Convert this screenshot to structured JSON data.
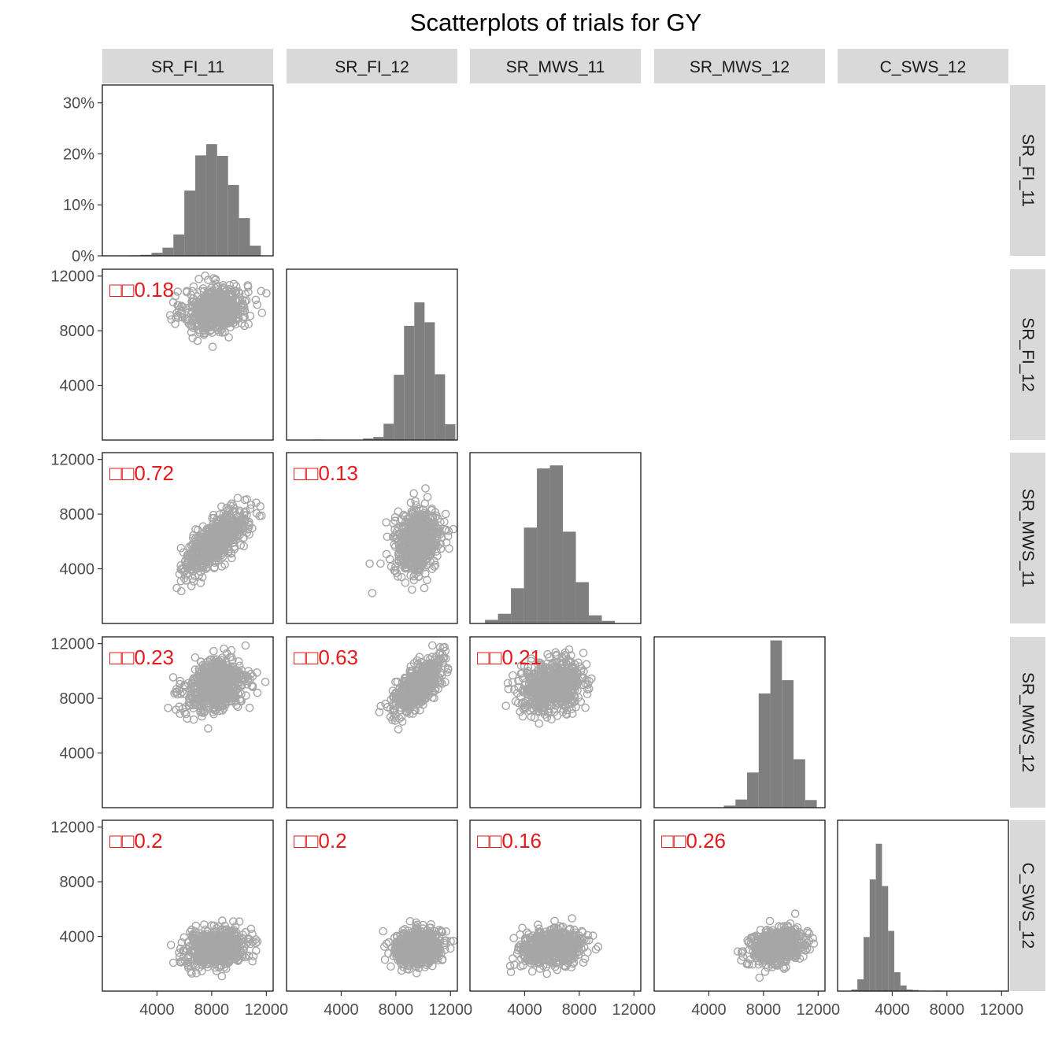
{
  "chart_data": {
    "type": "scatter",
    "title": "Scatterplots of trials for GY",
    "trials": [
      "SR_FI_11",
      "SR_FI_12",
      "SR_MWS_11",
      "SR_MWS_12",
      "C_SWS_12"
    ],
    "axis_range": [
      0,
      12500
    ],
    "axis_ticks": [
      4000,
      8000,
      12000
    ],
    "axis_tick_labels": [
      "4000",
      "8000",
      "12000"
    ],
    "hist_y_ticks": [
      0,
      10,
      20,
      30
    ],
    "hist_y_tick_labels": [
      "0%",
      "10%",
      "20%",
      "30%"
    ],
    "hist_y_max": 33.5,
    "colors": {
      "points": "#a6a6a6",
      "histogram": "#7f7f7f",
      "strip": "#d9d9d9",
      "correlation_text": "#e41a1c",
      "panel_border": "#1a1a1a",
      "axis_text": "#4d4d4d"
    },
    "point_counts": 600,
    "trial_stats": [
      {
        "mean": 8300,
        "sd": 1150
      },
      {
        "mean": 9600,
        "sd": 850
      },
      {
        "mean": 6000,
        "sd": 1150
      },
      {
        "mean": 8900,
        "sd": 950
      },
      {
        "mean": 3200,
        "sd": 650
      }
    ],
    "histograms": [
      {
        "bin_width": 800,
        "bins": [
          {
            "start": 2000,
            "pct": 0.1
          },
          {
            "start": 2800,
            "pct": 0.2
          },
          {
            "start": 3600,
            "pct": 0.6
          },
          {
            "start": 4400,
            "pct": 1.6
          },
          {
            "start": 5200,
            "pct": 4.2
          },
          {
            "start": 6000,
            "pct": 12.8
          },
          {
            "start": 6800,
            "pct": 19.7
          },
          {
            "start": 7600,
            "pct": 21.9
          },
          {
            "start": 8400,
            "pct": 19.6
          },
          {
            "start": 9200,
            "pct": 13.9
          },
          {
            "start": 10000,
            "pct": 7.4
          },
          {
            "start": 10800,
            "pct": 2.0
          }
        ]
      },
      {
        "bin_width": 750,
        "bins": [
          {
            "start": 2000,
            "pct": 0.1
          },
          {
            "start": 5600,
            "pct": 0.3
          },
          {
            "start": 6350,
            "pct": 0.6
          },
          {
            "start": 7100,
            "pct": 3.2
          },
          {
            "start": 7850,
            "pct": 12.8
          },
          {
            "start": 8600,
            "pct": 22.4
          },
          {
            "start": 9350,
            "pct": 27.0
          },
          {
            "start": 10100,
            "pct": 23.1
          },
          {
            "start": 10850,
            "pct": 12.9
          },
          {
            "start": 11600,
            "pct": 3.1
          }
        ]
      },
      {
        "bin_width": 950,
        "bins": [
          {
            "start": 1100,
            "pct": 0.7
          },
          {
            "start": 2050,
            "pct": 1.9
          },
          {
            "start": 3000,
            "pct": 6.9
          },
          {
            "start": 3950,
            "pct": 18.8
          },
          {
            "start": 4900,
            "pct": 30.4
          },
          {
            "start": 5850,
            "pct": 31.0
          },
          {
            "start": 6800,
            "pct": 18.0
          },
          {
            "start": 7750,
            "pct": 8.1
          },
          {
            "start": 8700,
            "pct": 1.6
          },
          {
            "start": 9650,
            "pct": 0.5
          }
        ]
      },
      {
        "bin_width": 850,
        "bins": [
          {
            "start": 5100,
            "pct": 0.4
          },
          {
            "start": 5950,
            "pct": 1.6
          },
          {
            "start": 6800,
            "pct": 6.9
          },
          {
            "start": 7650,
            "pct": 22.4
          },
          {
            "start": 8500,
            "pct": 32.8
          },
          {
            "start": 9350,
            "pct": 25.0
          },
          {
            "start": 10200,
            "pct": 9.5
          },
          {
            "start": 11050,
            "pct": 1.5
          }
        ]
      },
      {
        "bin_width": 450,
        "bins": [
          {
            "start": 1000,
            "pct": 0.3
          },
          {
            "start": 1450,
            "pct": 2.3
          },
          {
            "start": 1900,
            "pct": 10.6
          },
          {
            "start": 2350,
            "pct": 21.9
          },
          {
            "start": 2800,
            "pct": 28.9
          },
          {
            "start": 3250,
            "pct": 20.6
          },
          {
            "start": 3700,
            "pct": 11.8
          },
          {
            "start": 4150,
            "pct": 3.7
          },
          {
            "start": 4600,
            "pct": 1.1
          },
          {
            "start": 5050,
            "pct": 0.3
          },
          {
            "start": 5500,
            "pct": 0.2
          },
          {
            "start": 6000,
            "pct": 0.1
          },
          {
            "start": 7000,
            "pct": 0.1
          }
        ]
      }
    ],
    "correlations": [
      {
        "row": "SR_FI_12",
        "col": "SR_FI_11",
        "value": 0.18
      },
      {
        "row": "SR_MWS_11",
        "col": "SR_FI_11",
        "value": 0.72
      },
      {
        "row": "SR_MWS_11",
        "col": "SR_FI_12",
        "value": 0.13
      },
      {
        "row": "SR_MWS_12",
        "col": "SR_FI_11",
        "value": 0.23
      },
      {
        "row": "SR_MWS_12",
        "col": "SR_FI_12",
        "value": 0.63
      },
      {
        "row": "SR_MWS_12",
        "col": "SR_MWS_11",
        "value": 0.21
      },
      {
        "row": "C_SWS_12",
        "col": "SR_FI_11",
        "value": 0.2
      },
      {
        "row": "C_SWS_12",
        "col": "SR_FI_12",
        "value": 0.2
      },
      {
        "row": "C_SWS_12",
        "col": "SR_MWS_11",
        "value": 0.16
      },
      {
        "row": "C_SWS_12",
        "col": "SR_MWS_12",
        "value": 0.26
      }
    ],
    "correlation_labels": [
      "□□0.18",
      "□□0.72",
      "□□0.13",
      "□□0.23",
      "□□0.63",
      "□□0.21",
      "□□0.2",
      "□□0.2",
      "□□0.16",
      "□□0.26"
    ]
  }
}
